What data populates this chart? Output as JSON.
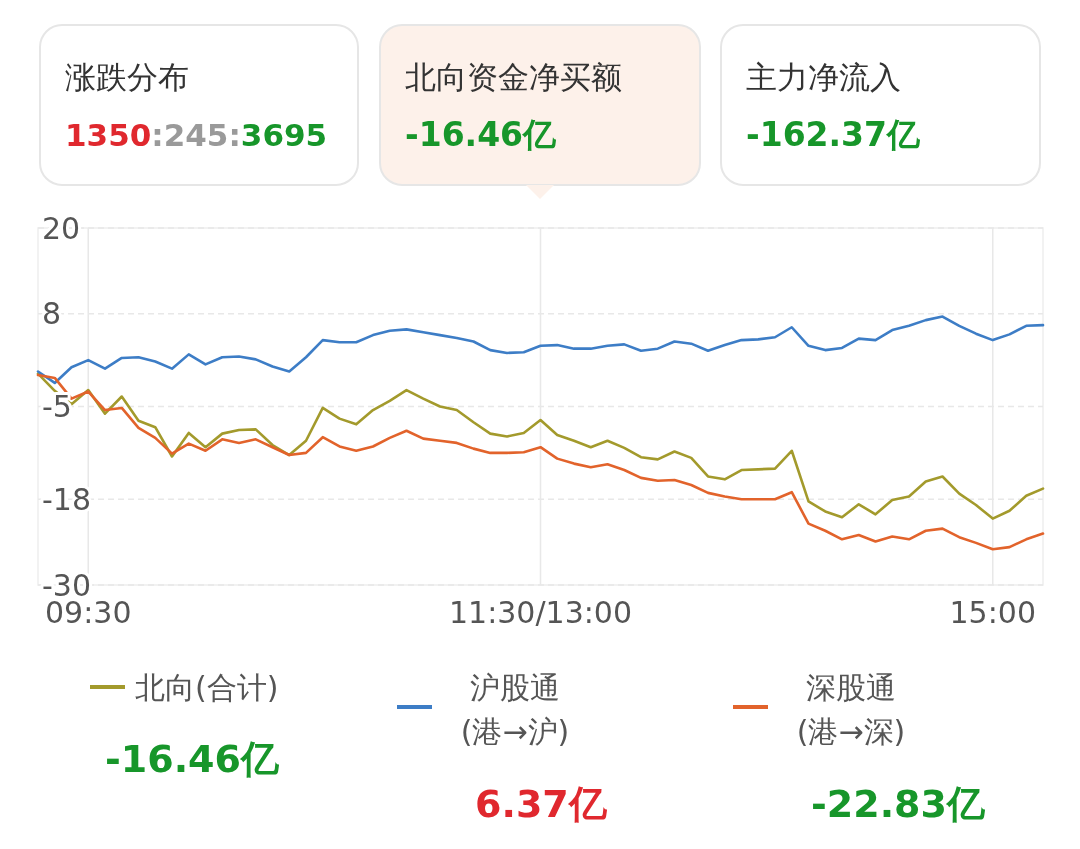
{
  "chart_data": {
    "type": "line",
    "categories": [
      null,
      null,
      null,
      "09:30",
      null,
      null,
      null,
      null,
      null,
      null,
      null,
      null,
      null,
      null,
      null,
      null,
      null,
      null,
      null,
      null,
      null,
      null,
      null,
      null,
      null,
      null,
      null,
      null,
      null,
      null,
      "11:30/13:00",
      null,
      null,
      null,
      null,
      null,
      null,
      null,
      null,
      null,
      null,
      null,
      null,
      null,
      null,
      null,
      null,
      null,
      null,
      null,
      null,
      null,
      null,
      null,
      null,
      null,
      null,
      "15:00",
      null,
      null,
      null
    ],
    "ylim": [
      -30,
      20
    ],
    "yticks": [
      20,
      8,
      -5,
      -18,
      -30
    ],
    "grid": true,
    "legend": "bottom",
    "line_style": "solid",
    "marker": "none",
    "series": [
      {
        "name": "北向(合计)",
        "color": "#a39a2c",
        "values": [
          -0.4,
          -2.8,
          -4.7,
          -2.7,
          -6.0,
          -3.6,
          -7.0,
          -7.9,
          -12.0,
          -8.7,
          -10.7,
          -8.8,
          -8.3,
          -8.2,
          -10.4,
          -11.8,
          -9.8,
          -5.2,
          -6.7,
          -7.5,
          -5.5,
          -4.2,
          -2.7,
          -3.9,
          -5.0,
          -5.5,
          -7.2,
          -8.8,
          -9.2,
          -8.7,
          -6.9,
          -9.0,
          -9.8,
          -10.7,
          -9.8,
          -10.8,
          -12.1,
          -12.4,
          -11.3,
          -12.2,
          -14.8,
          -15.2,
          -13.9,
          -13.8,
          -13.7,
          -11.2,
          -18.3,
          -19.7,
          -20.5,
          -18.7,
          -20.1,
          -18.1,
          -17.6,
          -15.5,
          -14.8,
          -17.2,
          -18.8,
          -20.7,
          -19.6,
          -17.5,
          -16.5
        ]
      },
      {
        "name": "沪股通(港→沪)",
        "color": "#3d7dc6",
        "values": [
          -0.1,
          -1.7,
          0.5,
          1.5,
          0.3,
          1.8,
          1.9,
          1.3,
          0.3,
          2.3,
          0.9,
          1.9,
          2.0,
          1.6,
          0.6,
          -0.1,
          1.9,
          4.3,
          4.0,
          4.0,
          5.0,
          5.6,
          5.8,
          5.4,
          5.0,
          4.6,
          4.1,
          2.9,
          2.5,
          2.6,
          3.5,
          3.6,
          3.1,
          3.1,
          3.5,
          3.7,
          2.8,
          3.1,
          4.1,
          3.8,
          2.8,
          3.6,
          4.3,
          4.4,
          4.7,
          6.1,
          3.5,
          2.9,
          3.2,
          4.5,
          4.3,
          5.7,
          6.3,
          7.1,
          7.6,
          6.3,
          5.2,
          4.3,
          5.1,
          6.3,
          6.4
        ]
      },
      {
        "name": "深股通(港→深)",
        "color": "#e2632b",
        "values": [
          -0.6,
          -1.0,
          -3.9,
          -2.9,
          -5.5,
          -5.2,
          -8.0,
          -9.4,
          -11.6,
          -10.2,
          -11.2,
          -9.6,
          -10.1,
          -9.6,
          -10.7,
          -11.8,
          -11.5,
          -9.3,
          -10.6,
          -11.2,
          -10.6,
          -9.4,
          -8.4,
          -9.5,
          -9.8,
          -10.1,
          -10.9,
          -11.5,
          -11.5,
          -11.4,
          -10.7,
          -12.3,
          -13.0,
          -13.5,
          -13.1,
          -13.9,
          -15.0,
          -15.4,
          -15.3,
          -16.0,
          -17.1,
          -17.6,
          -18.0,
          -18.0,
          -18.0,
          -17.0,
          -21.4,
          -22.4,
          -23.6,
          -23.0,
          -23.9,
          -23.2,
          -23.6,
          -22.4,
          -22.1,
          -23.3,
          -24.1,
          -25.0,
          -24.7,
          -23.6,
          -22.8
        ]
      }
    ],
    "annotations": [
      "涨跌分布",
      "1350:245:3695",
      "北向资金净买额",
      "-16.46亿",
      "主力净流入",
      "-162.37亿",
      "-16.46亿",
      "6.37亿",
      "-22.83亿"
    ]
  }
}
